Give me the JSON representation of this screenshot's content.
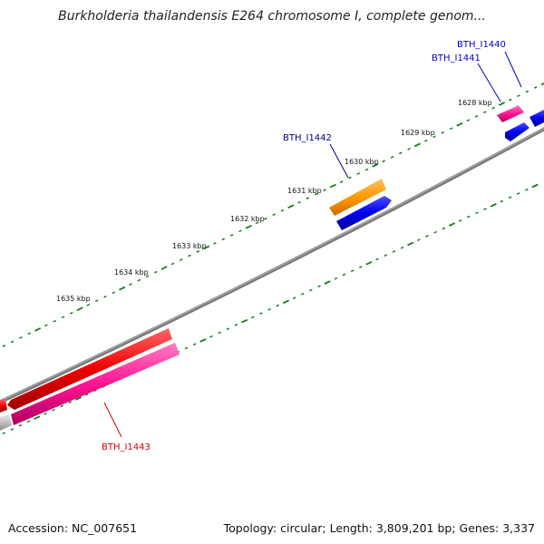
{
  "title": "Burkholderia thailandensis E264 chromosome I, complete genom...",
  "footer": {
    "accession": "Accession: NC_007651",
    "summary": "Topology: circular; Length: 3,809,201 bp; Genes: 3,337"
  },
  "kbp_labels": [
    "1628 kbp",
    "1629 kbp",
    "1630 kbp",
    "1631 kbp",
    "1632 kbp",
    "1633 kbp",
    "1634 kbp",
    "1635 kbp"
  ],
  "genes": [
    {
      "id": "BTH_I1440",
      "color": "#0000cc"
    },
    {
      "id": "BTH_I1441",
      "color": "#0000cc"
    },
    {
      "id": "BTH_I1442",
      "color": "#000080"
    },
    {
      "id": "BTH_I1443",
      "color": "#cc0000"
    }
  ],
  "colors": {
    "backbone": "#808080",
    "ticks": "#1a7a1a",
    "forward_blue": "#0000ee",
    "orange": "#ff9900",
    "red": "#ee0000",
    "pink": "#ff1493",
    "grey": "#c0c0c0"
  }
}
